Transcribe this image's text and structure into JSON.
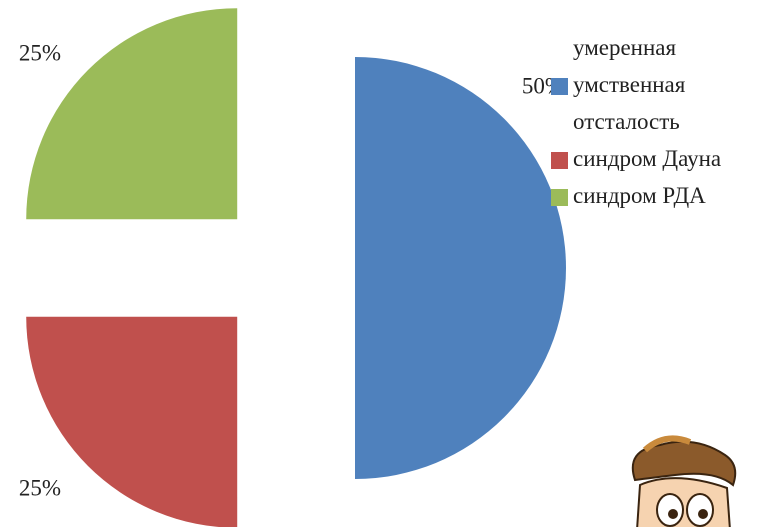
{
  "chart_data": {
    "type": "pie",
    "categories": [
      "умеренная умственная отсталость",
      "синдром Дауна",
      "синдром РДА"
    ],
    "values": [
      50,
      25,
      25
    ],
    "value_labels": [
      "50%",
      "25%",
      "25%"
    ],
    "colors": [
      "#4f81bd",
      "#c0504d",
      "#9bbb59"
    ],
    "exploded": true,
    "legend": "right"
  }
}
